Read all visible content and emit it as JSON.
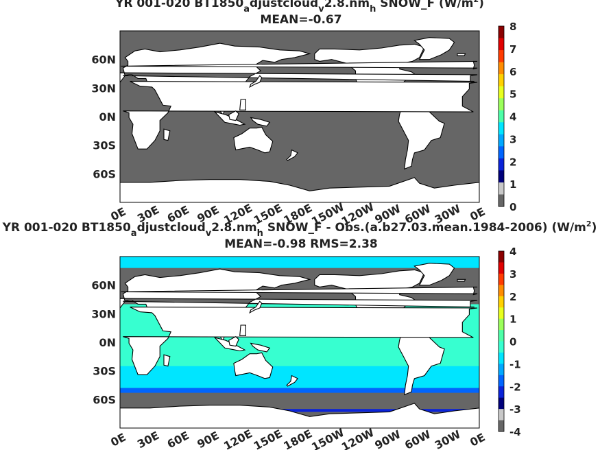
{
  "chart_data": [
    {
      "type": "heatmap",
      "title_parts": [
        "YR 001-020 BT1850",
        "a",
        "djustcloud",
        "v",
        "2.8.nm",
        "h",
        "  SNOW_F (W/m",
        "2",
        ")"
      ],
      "subtitle": "MEAN=-0.67",
      "yticks": [
        "60N",
        "30N",
        "0N",
        "30S",
        "60S"
      ],
      "xticks": [
        "0E",
        "30E",
        "60E",
        "90E",
        "120E",
        "150E",
        "180E",
        "150W",
        "120W",
        "90W",
        "60W",
        "30W",
        "0E"
      ],
      "colorbar_ticks": [
        "8",
        "7",
        "6",
        "5",
        "4",
        "3",
        "2",
        "1",
        "0"
      ],
      "colorbar_colors": [
        "#8b0000",
        "#e00000",
        "#ff3b00",
        "#ff8c00",
        "#ffd100",
        "#e8ff1e",
        "#9bff5b",
        "#4dffa8",
        "#00e5ff",
        "#00a8ff",
        "#0065ff",
        "#0a23d8",
        "#00007a",
        "#c8c8c8",
        "#666666"
      ],
      "ocean_color": "#666666",
      "land_color": "#ffffff"
    },
    {
      "type": "heatmap",
      "title_parts": [
        "YR 001-020 BT1850",
        "a",
        "djustcloud",
        "v",
        "2.8.nm",
        "h",
        " SNOW_F - Obs.(a.b27.03.mean.1984-2006) (W/m",
        "2",
        ")"
      ],
      "subtitle": "MEAN=-0.98 RMS=2.38",
      "yticks": [
        "60N",
        "30N",
        "0N",
        "30S",
        "60S"
      ],
      "xticks": [
        "0E",
        "30E",
        "60E",
        "90E",
        "120E",
        "150E",
        "180E",
        "150W",
        "120W",
        "90W",
        "60W",
        "30W",
        "0E"
      ],
      "colorbar_ticks": [
        "4",
        "3",
        "2",
        "1",
        "0",
        "-1",
        "-2",
        "-3",
        "-4"
      ],
      "colorbar_colors": [
        "#8b0000",
        "#e00000",
        "#ff3b00",
        "#ff8c00",
        "#ffd100",
        "#e8ff1e",
        "#9bff5b",
        "#4dffa8",
        "#37ffd0",
        "#00e5ff",
        "#00a8ff",
        "#0065ff",
        "#0a23d8",
        "#00007a",
        "#c8c8c8",
        "#666666"
      ],
      "ocean_color": "#666666",
      "land_color": "#ffffff",
      "anomaly_bands_colors": [
        "#00e5ff",
        "#37ffd0",
        "#0065ff",
        "#0a23d8"
      ]
    }
  ]
}
